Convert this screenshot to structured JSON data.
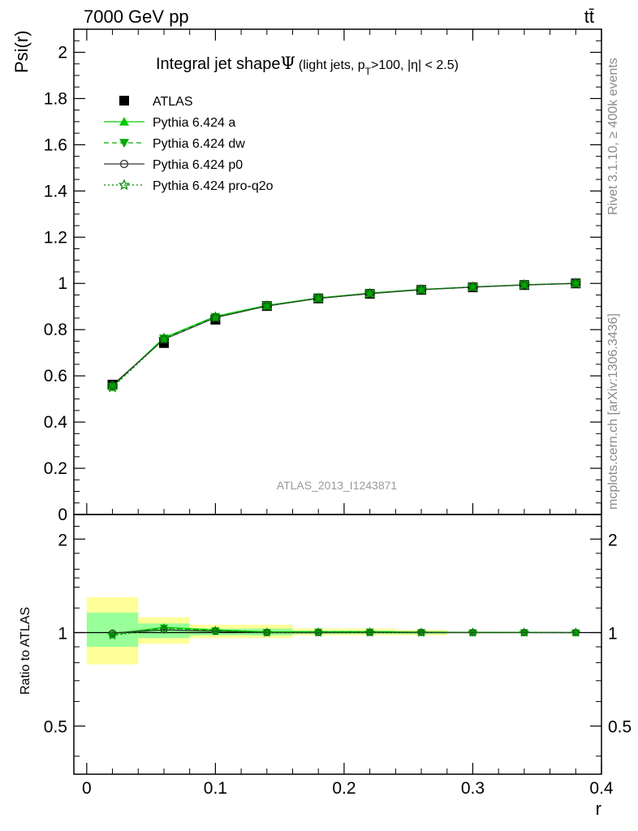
{
  "header": {
    "left_title": "7000 GeV pp",
    "right_title": "tt̄"
  },
  "side_labels": {
    "rivet": "Rivet 3.1.10, ≥ 400k events",
    "mcplots": "mcplots.cern.ch [arXiv:1306.3436]"
  },
  "analysis_label": "ATLAS_2013_I1243871",
  "colors": {
    "data": "#000000",
    "pythia_a": "#00cc00",
    "pythia_dw": "#00aa00",
    "pythia_p0": "#333333",
    "pythia_pro_q2o": "#008800",
    "band_yellow": "#ffff99",
    "band_green": "#99ff99"
  },
  "chart_data": [
    {
      "type": "scatter",
      "title": "Integral jet shapeΨ (light jets, p_T>100, |η| < 2.5)",
      "title_main": "Integral jet shape",
      "title_symbol": "Ψ",
      "title_detail": "(light jets, p",
      "title_sub": "T",
      "title_detail2": ">100, |η| < 2.5)",
      "xlabel": "r",
      "ylabel": "Psi(r)",
      "xlim": [
        -0.01,
        0.4
      ],
      "ylim": [
        0,
        2.1
      ],
      "x_ticks": [
        0,
        0.1,
        0.2,
        0.3,
        0.4
      ],
      "x_tick_labels": [
        "0",
        "0.1",
        "0.2",
        "0.3",
        "0.4"
      ],
      "y_ticks": [
        0,
        0.2,
        0.4,
        0.6,
        0.8,
        1,
        1.2,
        1.4,
        1.6,
        1.8,
        2
      ],
      "y_tick_labels": [
        "0",
        "0.2",
        "0.4",
        "0.6",
        "0.8",
        "1",
        "1.2",
        "1.4",
        "1.6",
        "1.8",
        "2"
      ],
      "x": [
        0.02,
        0.06,
        0.1,
        0.14,
        0.18,
        0.22,
        0.26,
        0.3,
        0.34,
        0.38
      ],
      "legend_position": "top-left",
      "series": [
        {
          "name": "ATLAS",
          "marker": "square",
          "values": [
            0.562,
            0.742,
            0.843,
            0.902,
            0.935,
            0.955,
            0.972,
            0.983,
            0.993,
            1.0
          ]
        },
        {
          "name": "Pythia 6.424 a",
          "marker": "triangle-up",
          "line": "solid",
          "values": [
            0.555,
            0.765,
            0.858,
            0.905,
            0.937,
            0.958,
            0.974,
            0.985,
            0.994,
            1.0
          ]
        },
        {
          "name": "Pythia 6.424 dw",
          "marker": "triangle-down",
          "line": "dashed",
          "values": [
            0.553,
            0.762,
            0.855,
            0.903,
            0.936,
            0.957,
            0.973,
            0.984,
            0.994,
            1.0
          ]
        },
        {
          "name": "Pythia 6.424 p0",
          "marker": "circle-open",
          "line": "solid",
          "values": [
            0.56,
            0.758,
            0.852,
            0.902,
            0.935,
            0.956,
            0.973,
            0.984,
            0.993,
            1.0
          ]
        },
        {
          "name": "Pythia 6.424 pro-q2o",
          "marker": "star-open",
          "line": "dotted",
          "values": [
            0.55,
            0.76,
            0.852,
            0.902,
            0.935,
            0.956,
            0.972,
            0.984,
            0.993,
            1.0
          ]
        }
      ]
    },
    {
      "type": "scatter",
      "title": "",
      "xlabel": "r",
      "ylabel": "Ratio to ATLAS",
      "xlim": [
        -0.01,
        0.4
      ],
      "ylim": [
        0.35,
        2.4
      ],
      "y_scale": "log",
      "y_ticks": [
        0.5,
        1,
        2
      ],
      "y_tick_labels": [
        "0.5",
        "1",
        "2"
      ],
      "x": [
        0.02,
        0.06,
        0.1,
        0.14,
        0.18,
        0.22,
        0.26,
        0.3,
        0.34,
        0.38
      ],
      "uncertainty_bands": {
        "bin_edges": [
          0.0,
          0.04,
          0.08,
          0.12,
          0.16,
          0.2,
          0.24,
          0.28,
          0.32,
          0.36,
          0.4
        ],
        "yellow": [
          [
            0.79,
            1.3
          ],
          [
            0.92,
            1.12
          ],
          [
            0.96,
            1.06
          ],
          [
            0.96,
            1.06
          ],
          [
            0.98,
            1.03
          ],
          [
            0.98,
            1.03
          ],
          [
            0.98,
            1.02
          ],
          [
            0.995,
            1.005
          ],
          [
            0.997,
            1.003
          ],
          [
            0.999,
            1.001
          ]
        ],
        "green": [
          [
            0.9,
            1.16
          ],
          [
            0.96,
            1.07
          ],
          [
            0.98,
            1.03
          ],
          [
            0.98,
            1.03
          ],
          [
            0.99,
            1.015
          ],
          [
            0.99,
            1.015
          ],
          [
            0.99,
            1.01
          ],
          [
            0.998,
            1.002
          ],
          [
            0.999,
            1.001
          ],
          [
            0.9995,
            1.0005
          ]
        ]
      },
      "series": [
        {
          "name": "Pythia 6.424 a",
          "values": [
            0.99,
            1.04,
            1.02,
            1.005,
            1.006,
            1.006,
            1.003,
            1.002,
            1.001,
            1.0
          ]
        },
        {
          "name": "Pythia 6.424 dw",
          "values": [
            0.985,
            1.035,
            1.015,
            1.002,
            1.005,
            1.005,
            1.002,
            1.001,
            1.001,
            1.0
          ]
        },
        {
          "name": "Pythia 6.424 p0",
          "values": [
            0.997,
            1.02,
            1.01,
            1.0,
            1.0,
            1.001,
            1.001,
            1.0,
            1.0,
            1.0
          ]
        },
        {
          "name": "Pythia 6.424 pro-q2o",
          "values": [
            0.98,
            1.025,
            1.012,
            1.0,
            1.0,
            1.001,
            1.0,
            1.0,
            1.0,
            1.0
          ]
        }
      ]
    }
  ]
}
